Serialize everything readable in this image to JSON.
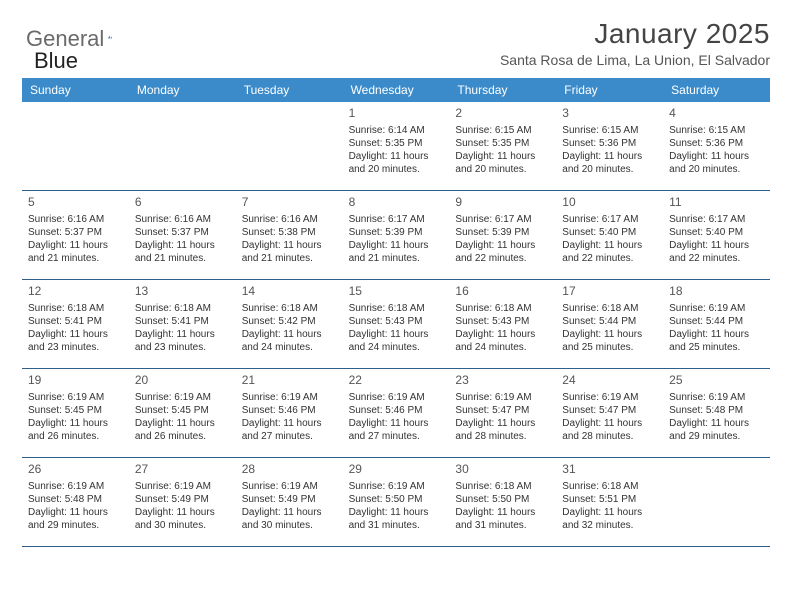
{
  "brand": {
    "part1": "General",
    "part2": "Blue"
  },
  "title": "January 2025",
  "subtitle": "Santa Rosa de Lima, La Union, El Salvador",
  "colors": {
    "header_bg": "#3b8bca",
    "header_text": "#ffffff",
    "week_border": "#2f5e87",
    "body_text": "#333333",
    "daynum_text": "#555555",
    "brand_gray": "#6a6a6a",
    "brand_blue": "#2d72b8"
  },
  "dayNames": [
    "Sunday",
    "Monday",
    "Tuesday",
    "Wednesday",
    "Thursday",
    "Friday",
    "Saturday"
  ],
  "weeks": [
    [
      null,
      null,
      null,
      {
        "n": "1",
        "sr": "6:14 AM",
        "ss": "5:35 PM",
        "dl": "11 hours and 20 minutes."
      },
      {
        "n": "2",
        "sr": "6:15 AM",
        "ss": "5:35 PM",
        "dl": "11 hours and 20 minutes."
      },
      {
        "n": "3",
        "sr": "6:15 AM",
        "ss": "5:36 PM",
        "dl": "11 hours and 20 minutes."
      },
      {
        "n": "4",
        "sr": "6:15 AM",
        "ss": "5:36 PM",
        "dl": "11 hours and 20 minutes."
      }
    ],
    [
      {
        "n": "5",
        "sr": "6:16 AM",
        "ss": "5:37 PM",
        "dl": "11 hours and 21 minutes."
      },
      {
        "n": "6",
        "sr": "6:16 AM",
        "ss": "5:37 PM",
        "dl": "11 hours and 21 minutes."
      },
      {
        "n": "7",
        "sr": "6:16 AM",
        "ss": "5:38 PM",
        "dl": "11 hours and 21 minutes."
      },
      {
        "n": "8",
        "sr": "6:17 AM",
        "ss": "5:39 PM",
        "dl": "11 hours and 21 minutes."
      },
      {
        "n": "9",
        "sr": "6:17 AM",
        "ss": "5:39 PM",
        "dl": "11 hours and 22 minutes."
      },
      {
        "n": "10",
        "sr": "6:17 AM",
        "ss": "5:40 PM",
        "dl": "11 hours and 22 minutes."
      },
      {
        "n": "11",
        "sr": "6:17 AM",
        "ss": "5:40 PM",
        "dl": "11 hours and 22 minutes."
      }
    ],
    [
      {
        "n": "12",
        "sr": "6:18 AM",
        "ss": "5:41 PM",
        "dl": "11 hours and 23 minutes."
      },
      {
        "n": "13",
        "sr": "6:18 AM",
        "ss": "5:41 PM",
        "dl": "11 hours and 23 minutes."
      },
      {
        "n": "14",
        "sr": "6:18 AM",
        "ss": "5:42 PM",
        "dl": "11 hours and 24 minutes."
      },
      {
        "n": "15",
        "sr": "6:18 AM",
        "ss": "5:43 PM",
        "dl": "11 hours and 24 minutes."
      },
      {
        "n": "16",
        "sr": "6:18 AM",
        "ss": "5:43 PM",
        "dl": "11 hours and 24 minutes."
      },
      {
        "n": "17",
        "sr": "6:18 AM",
        "ss": "5:44 PM",
        "dl": "11 hours and 25 minutes."
      },
      {
        "n": "18",
        "sr": "6:19 AM",
        "ss": "5:44 PM",
        "dl": "11 hours and 25 minutes."
      }
    ],
    [
      {
        "n": "19",
        "sr": "6:19 AM",
        "ss": "5:45 PM",
        "dl": "11 hours and 26 minutes."
      },
      {
        "n": "20",
        "sr": "6:19 AM",
        "ss": "5:45 PM",
        "dl": "11 hours and 26 minutes."
      },
      {
        "n": "21",
        "sr": "6:19 AM",
        "ss": "5:46 PM",
        "dl": "11 hours and 27 minutes."
      },
      {
        "n": "22",
        "sr": "6:19 AM",
        "ss": "5:46 PM",
        "dl": "11 hours and 27 minutes."
      },
      {
        "n": "23",
        "sr": "6:19 AM",
        "ss": "5:47 PM",
        "dl": "11 hours and 28 minutes."
      },
      {
        "n": "24",
        "sr": "6:19 AM",
        "ss": "5:47 PM",
        "dl": "11 hours and 28 minutes."
      },
      {
        "n": "25",
        "sr": "6:19 AM",
        "ss": "5:48 PM",
        "dl": "11 hours and 29 minutes."
      }
    ],
    [
      {
        "n": "26",
        "sr": "6:19 AM",
        "ss": "5:48 PM",
        "dl": "11 hours and 29 minutes."
      },
      {
        "n": "27",
        "sr": "6:19 AM",
        "ss": "5:49 PM",
        "dl": "11 hours and 30 minutes."
      },
      {
        "n": "28",
        "sr": "6:19 AM",
        "ss": "5:49 PM",
        "dl": "11 hours and 30 minutes."
      },
      {
        "n": "29",
        "sr": "6:19 AM",
        "ss": "5:50 PM",
        "dl": "11 hours and 31 minutes."
      },
      {
        "n": "30",
        "sr": "6:18 AM",
        "ss": "5:50 PM",
        "dl": "11 hours and 31 minutes."
      },
      {
        "n": "31",
        "sr": "6:18 AM",
        "ss": "5:51 PM",
        "dl": "11 hours and 32 minutes."
      },
      null
    ]
  ],
  "labels": {
    "sunrise": "Sunrise:",
    "sunset": "Sunset:",
    "daylight": "Daylight:"
  }
}
